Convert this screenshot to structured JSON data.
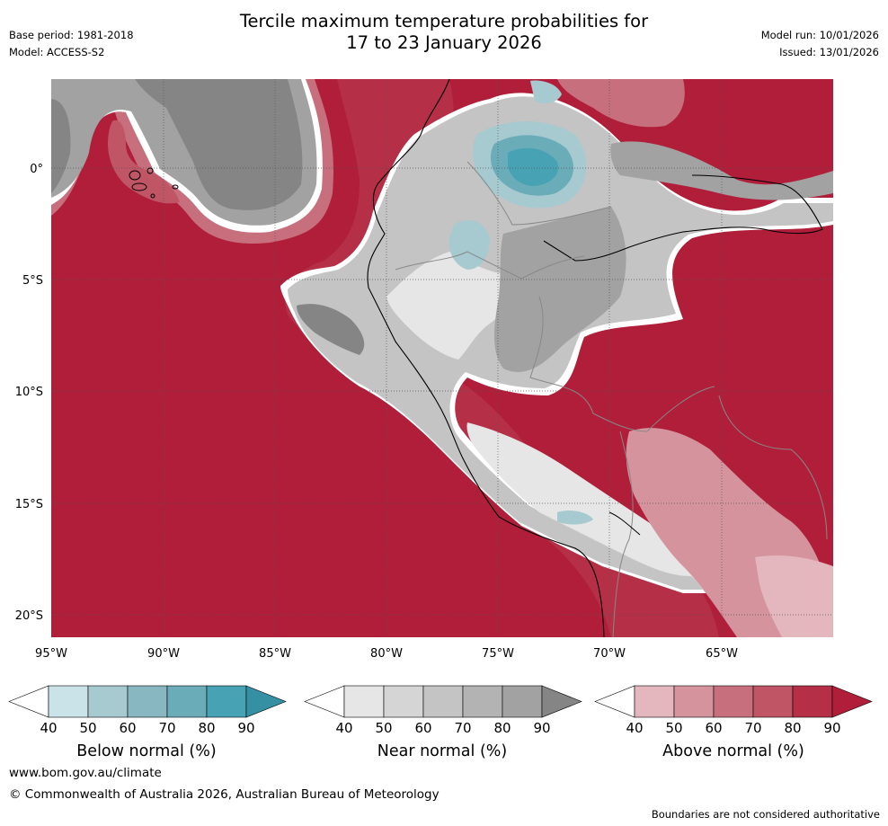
{
  "title": {
    "line1": "Tercile maximum temperature probabilities for",
    "line2": "17 to 23 January 2026"
  },
  "meta": {
    "base_period": "Base period: 1981-2018",
    "model": "Model: ACCESS-S2",
    "model_run": "Model run: 10/01/2026",
    "issued": "Issued: 13/01/2026"
  },
  "axes": {
    "lon_labels": [
      "95°W",
      "90°W",
      "85°W",
      "80°W",
      "75°W",
      "70°W",
      "65°W"
    ],
    "lat_labels": [
      "0°",
      "5°S",
      "10°S",
      "15°S",
      "20°S"
    ]
  },
  "colorbars": [
    {
      "name": "below",
      "label": "Below normal (%)",
      "ticks": [
        "40",
        "50",
        "60",
        "70",
        "80",
        "90"
      ],
      "colors": [
        "#ffffff",
        "#cae3e9",
        "#a7c9d0",
        "#88b6c1",
        "#6bacb9",
        "#47a2b3",
        "#3590a4"
      ]
    },
    {
      "name": "near",
      "label": "Near normal (%)",
      "ticks": [
        "40",
        "50",
        "60",
        "70",
        "80",
        "90"
      ],
      "colors": [
        "#ffffff",
        "#e6e6e6",
        "#d5d5d5",
        "#c4c4c4",
        "#b3b3b3",
        "#a2a2a2",
        "#858585"
      ]
    },
    {
      "name": "above",
      "label": "Above normal (%)",
      "ticks": [
        "40",
        "50",
        "60",
        "70",
        "80",
        "90"
      ],
      "colors": [
        "#ffffff",
        "#e4b6bd",
        "#d4939d",
        "#c86f7d",
        "#c05566",
        "#b52f47",
        "#b01e3a"
      ]
    }
  ],
  "colors": {
    "above_max": "#b01e3a",
    "near_dark": "#8a8a8a",
    "below_max": "#47a2b3"
  },
  "footer": {
    "url": "www.bom.gov.au/climate",
    "copyright": "© Commonwealth of Australia 2026, Australian Bureau of Meteorology",
    "note": "Boundaries are not considered authoritative"
  }
}
